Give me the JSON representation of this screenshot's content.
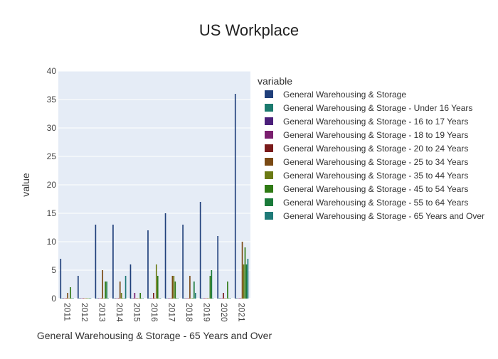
{
  "chart_data": {
    "type": "bar",
    "title": "US Workplace",
    "xlabel": "General Warehousing & Storage - 65 Years and Over",
    "ylabel": "value",
    "ylim": [
      0,
      40
    ],
    "y_ticks": [
      0,
      5,
      10,
      15,
      20,
      25,
      30,
      35,
      40
    ],
    "grid": true,
    "legend_title": "variable",
    "legend_placement": "right",
    "categories": [
      "2011",
      "2012",
      "2013",
      "2014",
      "2015",
      "2016",
      "2017",
      "2018",
      "2019",
      "2020",
      "2021"
    ],
    "series": [
      {
        "name": "General Warehousing & Storage",
        "color": "#1f3f7a",
        "values": [
          7,
          4,
          13,
          13,
          6,
          12,
          15,
          13,
          17,
          11,
          36
        ]
      },
      {
        "name": "General Warehousing & Storage - Under 16 Years",
        "color": "#1b7a6e",
        "values": [
          0,
          0,
          0,
          0,
          0,
          0,
          0,
          0,
          0,
          0,
          0
        ]
      },
      {
        "name": "General Warehousing & Storage - 16 to 17 Years",
        "color": "#4b1f7a",
        "values": [
          0,
          0,
          0,
          0,
          0,
          0,
          0,
          0,
          0,
          0,
          0
        ]
      },
      {
        "name": "General Warehousing & Storage - 18 to 19 Years",
        "color": "#7a1f6e",
        "values": [
          0,
          0,
          0,
          0,
          1,
          0,
          0,
          0,
          0,
          0,
          0
        ]
      },
      {
        "name": "General Warehousing & Storage - 20 to 24 Years",
        "color": "#7a1a1a",
        "values": [
          0,
          0,
          0,
          0,
          0,
          1,
          0,
          0,
          0,
          1,
          0
        ]
      },
      {
        "name": "General Warehousing & Storage - 25 to 34 Years",
        "color": "#7a4a14",
        "values": [
          1,
          0,
          5,
          3,
          0,
          0,
          4,
          4,
          0,
          0,
          10
        ]
      },
      {
        "name": "General Warehousing & Storage - 35 to 44 Years",
        "color": "#6b7a14",
        "values": [
          0,
          0,
          0,
          1,
          0,
          6,
          4,
          0,
          0,
          0,
          6
        ]
      },
      {
        "name": "General Warehousing & Storage - 45 to 54 Years",
        "color": "#2f7a14",
        "values": [
          2,
          0,
          3,
          0,
          1,
          4,
          3,
          0,
          4,
          3,
          9
        ]
      },
      {
        "name": "General Warehousing & Storage - 55 to 64 Years",
        "color": "#1a7a3a",
        "values": [
          0,
          0,
          3,
          0,
          0,
          0,
          0,
          3,
          5,
          0,
          6
        ]
      },
      {
        "name": "General Warehousing & Storage - 65 Years and Over",
        "color": "#1f7a78",
        "values": [
          0,
          0,
          0,
          4,
          0,
          0,
          0,
          1,
          0,
          0,
          7
        ]
      }
    ]
  }
}
